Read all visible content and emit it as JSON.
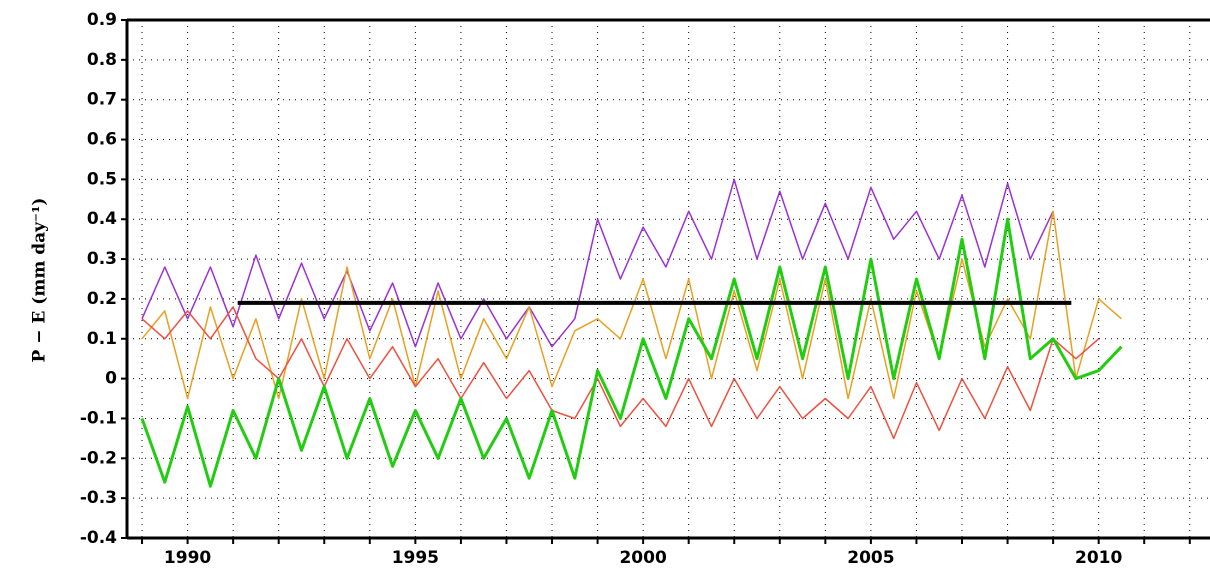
{
  "chart_data": {
    "type": "line",
    "ylabel": "P − E (mm day⁻¹)",
    "x": [
      1989.0,
      1989.5,
      1990.0,
      1990.5,
      1991.0,
      1991.5,
      1992.0,
      1992.5,
      1993.0,
      1993.5,
      1994.0,
      1994.5,
      1995.0,
      1995.5,
      1996.0,
      1996.5,
      1997.0,
      1997.5,
      1998.0,
      1998.5,
      1999.0,
      1999.5,
      2000.0,
      2000.5,
      2001.0,
      2001.5,
      2002.0,
      2002.5,
      2003.0,
      2003.5,
      2004.0,
      2004.5,
      2005.0,
      2005.5,
      2006.0,
      2006.5,
      2007.0,
      2007.5,
      2008.0,
      2008.5,
      2009.0,
      2009.5,
      2010.0,
      2010.5
    ],
    "series": [
      {
        "color": "#9b30d9",
        "width": 1.5,
        "values": [
          0.15,
          0.28,
          0.15,
          0.28,
          0.13,
          0.31,
          0.15,
          0.29,
          0.15,
          0.27,
          0.12,
          0.24,
          0.08,
          0.24,
          0.1,
          0.2,
          0.1,
          0.18,
          0.08,
          0.15,
          0.4,
          0.25,
          0.38,
          0.28,
          0.42,
          0.3,
          0.5,
          0.3,
          0.47,
          0.3,
          0.44,
          0.3,
          0.48,
          0.35,
          0.42,
          0.3,
          0.46,
          0.28,
          0.49,
          0.3,
          0.42,
          null,
          null,
          null
        ]
      },
      {
        "color": "#e8a020",
        "width": 1.5,
        "values": [
          0.1,
          0.17,
          -0.05,
          0.18,
          0.0,
          0.15,
          -0.05,
          0.2,
          0.0,
          0.28,
          0.05,
          0.2,
          -0.02,
          0.22,
          0.0,
          0.15,
          0.05,
          0.18,
          -0.02,
          0.12,
          0.15,
          0.1,
          0.25,
          0.05,
          0.25,
          0.0,
          0.22,
          0.02,
          0.25,
          0.0,
          0.25,
          -0.05,
          0.2,
          -0.05,
          0.22,
          0.05,
          0.3,
          0.08,
          0.2,
          0.1,
          0.42,
          0.0,
          0.2,
          0.15
        ]
      },
      {
        "color": "#f05040",
        "width": 1.5,
        "values": [
          0.15,
          0.1,
          0.17,
          0.1,
          0.18,
          0.05,
          0.0,
          0.1,
          -0.02,
          0.1,
          0.0,
          0.08,
          -0.02,
          0.05,
          -0.05,
          0.04,
          -0.05,
          0.02,
          -0.08,
          -0.1,
          0.0,
          -0.12,
          -0.05,
          -0.12,
          0.0,
          -0.12,
          0.0,
          -0.1,
          -0.02,
          -0.1,
          -0.05,
          -0.1,
          -0.02,
          -0.15,
          -0.01,
          -0.13,
          0.0,
          -0.1,
          0.03,
          -0.08,
          0.1,
          0.05,
          0.1,
          null
        ]
      },
      {
        "color": "#22cc11",
        "width": 3,
        "values": [
          -0.1,
          -0.26,
          -0.07,
          -0.27,
          -0.08,
          -0.2,
          0.0,
          -0.18,
          -0.02,
          -0.2,
          -0.05,
          -0.22,
          -0.08,
          -0.2,
          -0.05,
          -0.2,
          -0.1,
          -0.25,
          -0.08,
          -0.25,
          0.02,
          -0.1,
          0.1,
          -0.05,
          0.15,
          0.05,
          0.25,
          0.05,
          0.28,
          0.05,
          0.28,
          0.0,
          0.3,
          0.0,
          0.25,
          0.05,
          0.35,
          0.05,
          0.4,
          0.05,
          0.1,
          0.0,
          0.02,
          0.08
        ]
      }
    ],
    "reference": {
      "x": [
        1991.1,
        2009.4
      ],
      "value": 0.19,
      "color": "#000000"
    },
    "xlim": [
      1988.67,
      2012.4
    ],
    "ylim": [
      -0.4,
      0.9
    ],
    "xticks": [
      1990,
      1995,
      2000,
      2005,
      2010
    ],
    "xgrid": [
      1989,
      1990,
      1991,
      1992,
      1993,
      1994,
      1995,
      1996,
      1997,
      1998,
      1999,
      2000,
      2001,
      2002,
      2003,
      2004,
      2005,
      2006,
      2007,
      2008,
      2009,
      2010,
      2011,
      2012
    ],
    "yticks": [
      -0.4,
      -0.3,
      -0.2,
      -0.1,
      0,
      0.1,
      0.2,
      0.3,
      0.4,
      0.5,
      0.6,
      0.7,
      0.8,
      0.9
    ],
    "grid": true
  }
}
